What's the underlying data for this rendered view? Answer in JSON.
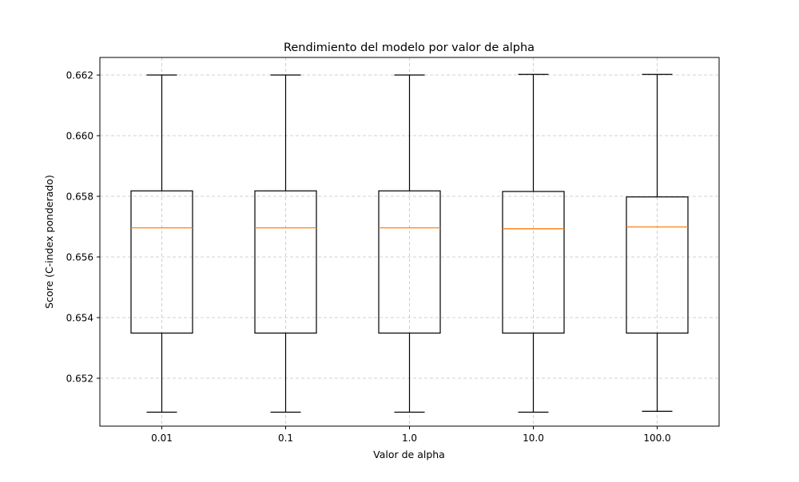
{
  "chart_data": {
    "type": "box",
    "title": "Rendimiento del modelo por valor de alpha",
    "xlabel": "Valor de alpha",
    "ylabel": "Score (C-index ponderado)",
    "categories": [
      "0.01",
      "0.1",
      "1.0",
      "10.0",
      "100.0"
    ],
    "boxes": [
      {
        "category": "0.01",
        "whisker_low": 0.65088,
        "q1": 0.65349,
        "median": 0.65696,
        "q3": 0.65818,
        "whisker_high": 0.662
      },
      {
        "category": "0.1",
        "whisker_low": 0.65088,
        "q1": 0.65349,
        "median": 0.65696,
        "q3": 0.65818,
        "whisker_high": 0.662
      },
      {
        "category": "1.0",
        "whisker_low": 0.65088,
        "q1": 0.65349,
        "median": 0.65696,
        "q3": 0.65818,
        "whisker_high": 0.662
      },
      {
        "category": "10.0",
        "whisker_low": 0.65088,
        "q1": 0.65349,
        "median": 0.65693,
        "q3": 0.65816,
        "whisker_high": 0.66202
      },
      {
        "category": "100.0",
        "whisker_low": 0.65091,
        "q1": 0.65349,
        "median": 0.65699,
        "q3": 0.65798,
        "whisker_high": 0.66202
      }
    ],
    "yticks": [
      "0.652",
      "0.654",
      "0.656",
      "0.658",
      "0.660",
      "0.662"
    ],
    "ylim": [
      0.65042,
      0.66258
    ],
    "grid": true,
    "colors": {
      "box": "#000000",
      "median": "#ff7f0e",
      "grid": "#b0b0b0"
    }
  }
}
